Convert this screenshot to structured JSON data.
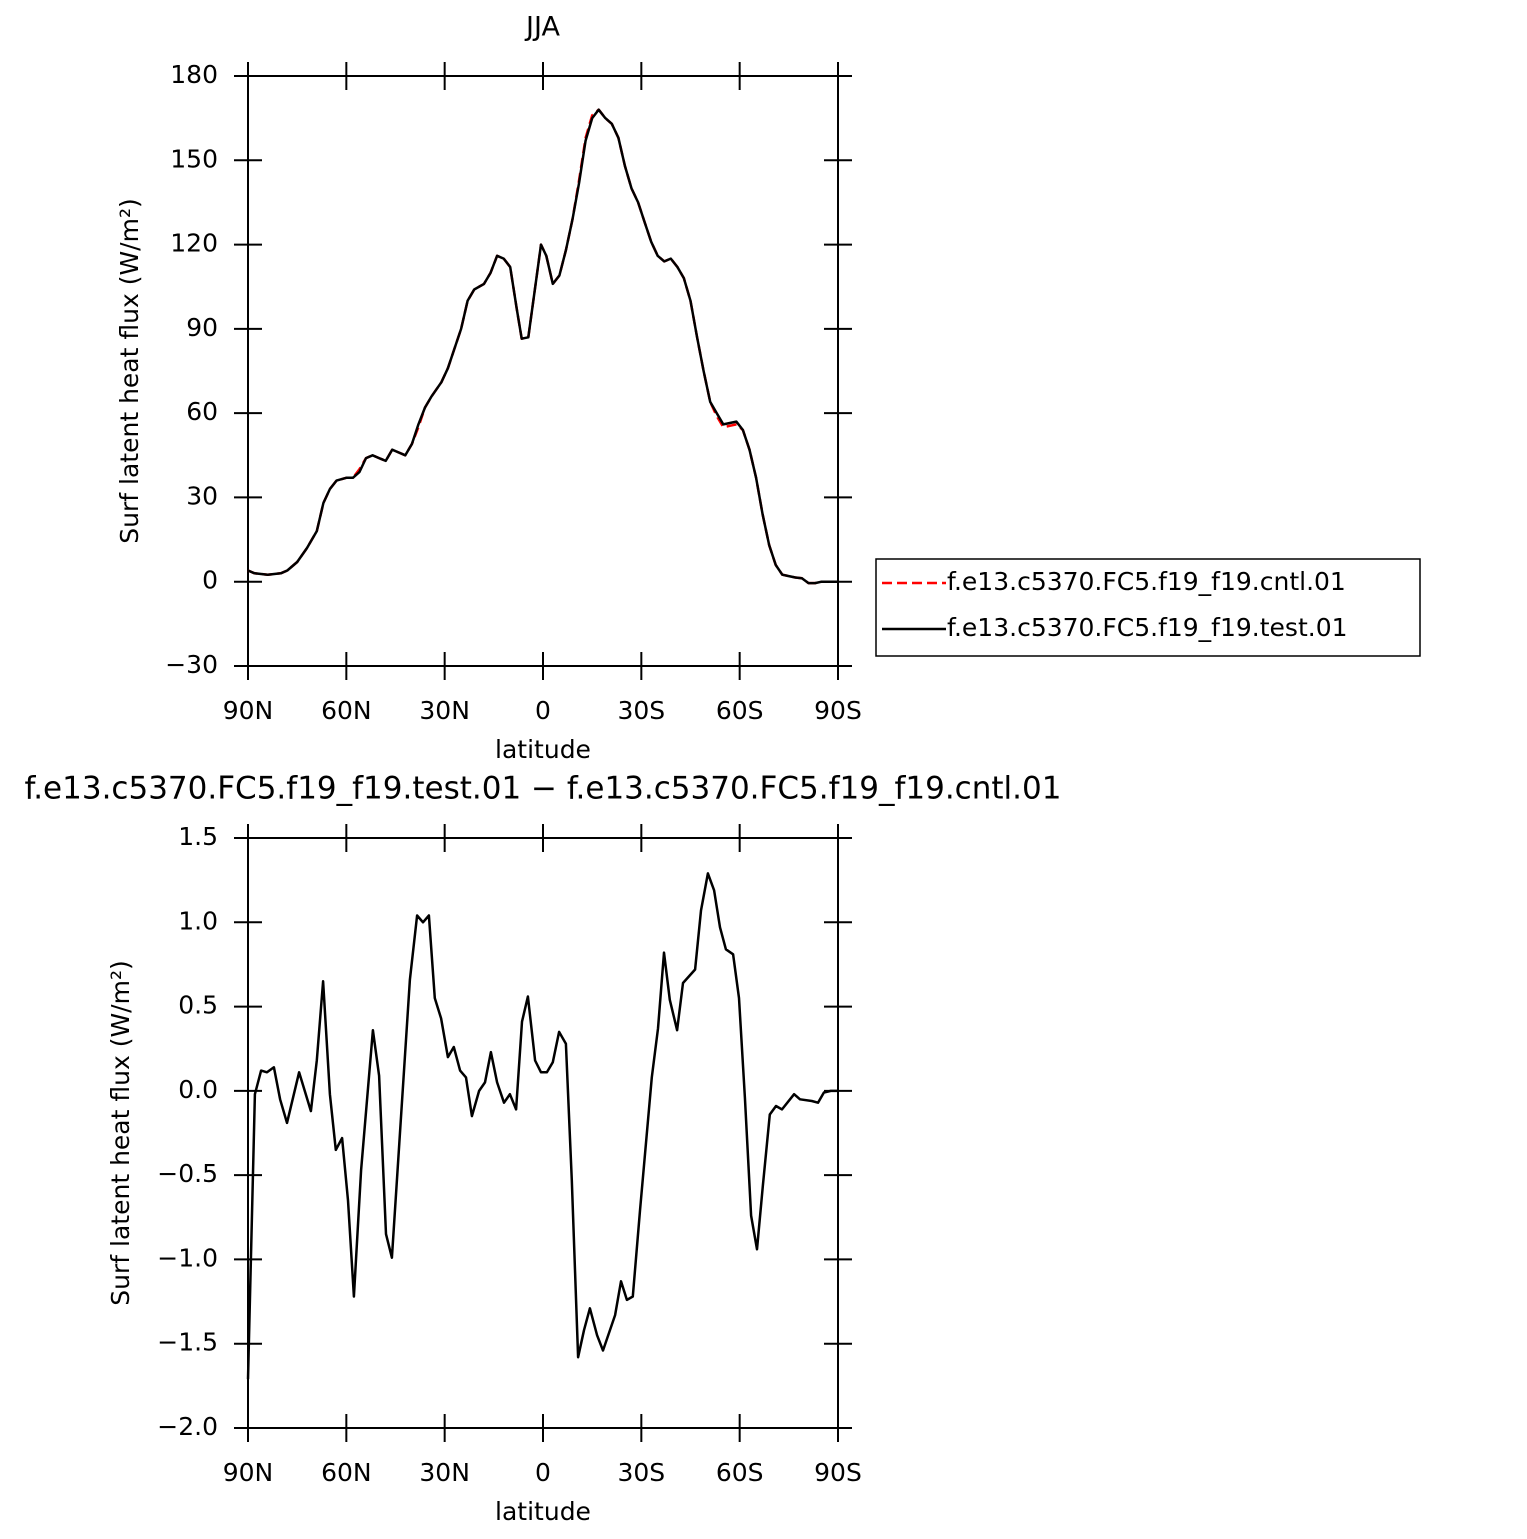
{
  "chart_data": [
    {
      "type": "line",
      "title": "JJA",
      "xlabel": "latitude",
      "ylabel": "Surf latent heat flux (W/m²)",
      "xlim": [
        90,
        -90
      ],
      "xticks": [
        {
          "value": 90,
          "label": "90N"
        },
        {
          "value": 60,
          "label": "60N"
        },
        {
          "value": 30,
          "label": "30N"
        },
        0,
        {
          "value": -30,
          "label": "30S"
        },
        {
          "value": -60,
          "label": "60S"
        },
        {
          "value": -90,
          "label": "90S"
        }
      ],
      "ylim": [
        -30,
        180
      ],
      "yticks": [
        {
          "value": -30,
          "label": "−30"
        },
        0,
        30,
        60,
        90,
        120,
        150,
        180
      ],
      "legend": "right",
      "x": [
        90,
        88,
        84,
        80,
        78,
        75,
        72,
        69,
        67,
        65,
        63,
        60,
        58,
        56,
        54,
        52,
        50,
        48,
        46,
        44,
        42,
        40,
        38,
        36,
        34,
        31,
        29,
        27,
        25,
        23,
        21,
        18,
        16,
        14,
        12,
        10,
        8,
        6.5,
        4.5,
        2,
        0.6,
        -1,
        -3,
        -5,
        -7,
        -9,
        -11,
        -13,
        -15,
        -17,
        -19,
        -21,
        -23,
        -25,
        -27,
        -29,
        -31,
        -33,
        -35,
        -37,
        -39,
        -41,
        -43,
        -45,
        -47,
        -49,
        -51,
        -53,
        -55,
        -57,
        -59,
        -61,
        -63,
        -65,
        -67,
        -69,
        -71,
        -73,
        -75,
        -77,
        -79,
        -81,
        -83,
        -85,
        -90
      ],
      "series": [
        {
          "name": "f.e13.c5370.FC5.f19_f19.cntl.01",
          "color": "#ff0000",
          "dashed": true,
          "values": [
            4,
            3,
            2.5,
            3,
            4,
            7,
            12,
            18,
            28,
            33,
            36,
            37,
            37,
            40,
            44,
            45,
            44,
            43,
            47,
            46,
            45,
            49,
            55,
            62,
            66,
            71,
            76,
            83,
            90,
            100,
            104,
            106,
            110,
            116,
            115,
            112,
            97,
            86.5,
            87,
            108,
            120,
            116,
            106,
            109,
            118,
            129,
            143,
            158,
            166,
            168,
            165,
            163,
            158,
            148,
            140,
            135,
            128,
            121,
            116,
            114,
            115,
            112,
            108,
            100,
            87,
            75,
            64,
            59,
            55,
            55.5,
            56,
            54,
            47,
            37,
            24,
            13,
            6,
            2.5,
            2,
            1.5,
            1.2,
            -0.5,
            -0.5,
            0,
            0
          ]
        },
        {
          "name": "f.e13.c5370.FC5.f19_f19.test.01",
          "color": "#000000",
          "dashed": false,
          "values": [
            4,
            3,
            2.5,
            3,
            4,
            7,
            12,
            18,
            28,
            33,
            36,
            37,
            37,
            39,
            44,
            45,
            44,
            43,
            47,
            46,
            45,
            49,
            56,
            62,
            66,
            71,
            76,
            83,
            90,
            100,
            104,
            106,
            110,
            116,
            115,
            112,
            97,
            86.5,
            87,
            108,
            120,
            116,
            106,
            109,
            118,
            129,
            142,
            157,
            165,
            168,
            165,
            163,
            158,
            148,
            140,
            135,
            128,
            121,
            116,
            114,
            115,
            112,
            108,
            100,
            87,
            75,
            64,
            60,
            56,
            56.5,
            57,
            54,
            47,
            37,
            24,
            13,
            6,
            2.5,
            2,
            1.5,
            1.2,
            -0.5,
            -0.5,
            0,
            0
          ]
        }
      ]
    },
    {
      "type": "line",
      "title": "f.e13.c5370.FC5.f19_f19.test.01 − f.e13.c5370.FC5.f19_f19.cntl.01",
      "xlabel": "latitude",
      "ylabel": "Surf latent heat flux (W/m²)",
      "xlim": [
        90,
        -90
      ],
      "xticks": [
        {
          "value": 90,
          "label": "90N"
        },
        {
          "value": 60,
          "label": "60N"
        },
        {
          "value": 30,
          "label": "30N"
        },
        0,
        {
          "value": -30,
          "label": "30S"
        },
        {
          "value": -60,
          "label": "60S"
        },
        {
          "value": -90,
          "label": "90S"
        }
      ],
      "ylim": [
        -2.0,
        1.5
      ],
      "yticks": [
        {
          "value": -2.0,
          "label": "−2.0"
        },
        {
          "value": -1.5,
          "label": "−1.5"
        },
        {
          "value": -1.0,
          "label": "−1.0"
        },
        {
          "value": -0.5,
          "label": "−0.5"
        },
        {
          "value": 0,
          "label": "0.0"
        },
        0.5,
        {
          "value": 1.0,
          "label": "1.0"
        },
        1.5
      ],
      "color": "#000000",
      "x": [
        90,
        87.9,
        86,
        84.2,
        82.1,
        80.2,
        78.1,
        74.4,
        70.8,
        69,
        67.1,
        65,
        63.2,
        61.3,
        59.5,
        57.7,
        55.5,
        51.9,
        50,
        47.9,
        46.1,
        40.6,
        38.4,
        36.6,
        34.8,
        33,
        31.1,
        29,
        27.2,
        25.3,
        23.5,
        21.7,
        19.5,
        17.7,
        15.9,
        14,
        11.9,
        10.1,
        8.2,
        6.4,
        4.6,
        2.4,
        0.6,
        -1.2,
        -3,
        -4.9,
        -7,
        -8.8,
        -10.7,
        -12.5,
        -14.3,
        -16.5,
        -18.3,
        -22,
        -23.8,
        -25.6,
        -27.4,
        -29.6,
        -33.2,
        -35.1,
        -36.9,
        -38.7,
        -40.9,
        -42.7,
        -46.4,
        -48.2,
        -50.3,
        -52.2,
        -54,
        -55.8,
        -58,
        -59.8,
        -61.6,
        -63.5,
        -65.3,
        -67.1,
        -69.2,
        -71.1,
        -72.9,
        -76.6,
        -78.4,
        -82,
        -83.9,
        -85.7,
        -87.8,
        -90
      ],
      "values": [
        -1.71,
        -0.02,
        0.12,
        0.11,
        0.14,
        -0.05,
        -0.19,
        0.11,
        -0.12,
        0.18,
        0.65,
        -0.02,
        -0.35,
        -0.28,
        -0.65,
        -1.22,
        -0.47,
        0.36,
        0.09,
        -0.85,
        -0.99,
        0.66,
        1.04,
        1.0,
        1.04,
        0.55,
        0.43,
        0.2,
        0.26,
        0.12,
        0.08,
        -0.15,
        0.0,
        0.05,
        0.23,
        0.05,
        -0.07,
        -0.02,
        -0.11,
        0.41,
        0.56,
        0.18,
        0.11,
        0.11,
        0.17,
        0.35,
        0.28,
        -0.53,
        -1.58,
        -1.42,
        -1.29,
        -1.45,
        -1.54,
        -1.33,
        -1.13,
        -1.24,
        -1.22,
        -0.71,
        0.08,
        0.37,
        0.82,
        0.54,
        0.36,
        0.64,
        0.72,
        1.07,
        1.29,
        1.19,
        0.97,
        0.84,
        0.81,
        0.55,
        -0.04,
        -0.74,
        -0.94,
        -0.56,
        -0.14,
        -0.09,
        -0.11,
        -0.02,
        -0.05,
        -0.06,
        -0.07,
        -0.01,
        0.0,
        0.0
      ]
    }
  ]
}
